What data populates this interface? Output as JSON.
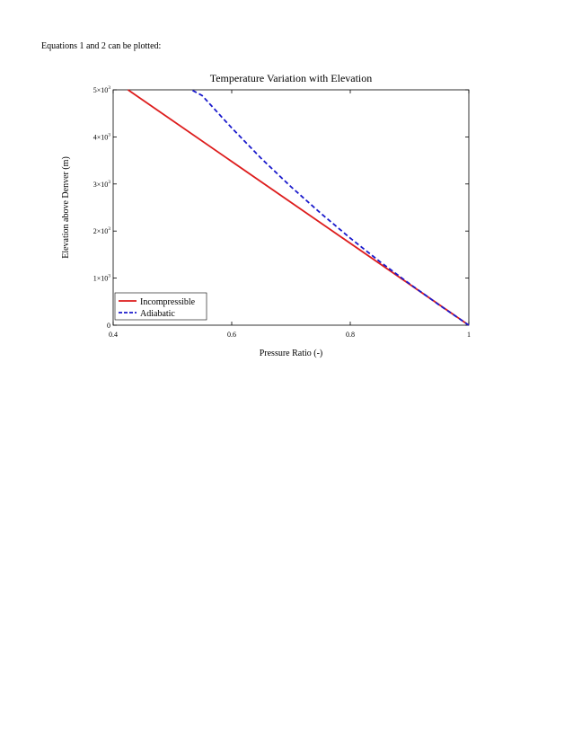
{
  "intro": {
    "text": "Equations 1 and 2 can be plotted:"
  },
  "chart_data": {
    "type": "line",
    "title": "Temperature Variation with Elevation",
    "xlabel": "Pressure Ratio (-)",
    "ylabel": "Elevation above Denver (m)",
    "xlim": [
      0.4,
      1.0
    ],
    "ylim": [
      0,
      5000
    ],
    "xticks": [
      {
        "value": 0.4,
        "label": "0.4"
      },
      {
        "value": 0.6,
        "label": "0.6"
      },
      {
        "value": 0.8,
        "label": "0.8"
      },
      {
        "value": 1.0,
        "label": "1"
      }
    ],
    "yticks": [
      {
        "value": 0,
        "label": "0",
        "exp": ""
      },
      {
        "value": 1000,
        "label": "1×10",
        "exp": "3"
      },
      {
        "value": 2000,
        "label": "2×10",
        "exp": "3"
      },
      {
        "value": 3000,
        "label": "3×10",
        "exp": "3"
      },
      {
        "value": 4000,
        "label": "4×10",
        "exp": "3"
      },
      {
        "value": 5000,
        "label": "5×10",
        "exp": "3"
      }
    ],
    "grid": false,
    "legend_position": "bottom-left",
    "series": [
      {
        "name": "Incompressible",
        "color": "#dd1c1c",
        "style": "solid",
        "x": [
          1.0,
          0.425
        ],
        "y": [
          0,
          5000
        ]
      },
      {
        "name": "Adiabatic",
        "color": "#1a1acc",
        "style": "dashed",
        "x": [
          1.0,
          0.95,
          0.9,
          0.85,
          0.8,
          0.75,
          0.7,
          0.65,
          0.6,
          0.55,
          0.532
        ],
        "y": [
          0,
          430,
          880,
          1350,
          1850,
          2380,
          2940,
          3540,
          4190,
          4880,
          5000
        ]
      }
    ]
  }
}
